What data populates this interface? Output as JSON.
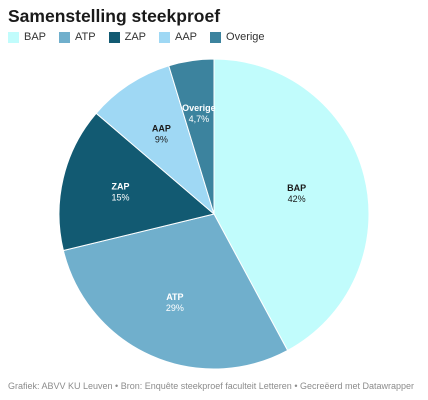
{
  "title": "Samenstelling steekproef",
  "footer": "Grafiek: ABVV KU Leuven • Bron: Enquête steekproef faculteit Letteren • Gecreëerd met Datawrapper",
  "chart_data": {
    "type": "pie",
    "title": "Samenstelling steekproef",
    "legend_position": "top-left",
    "slices": [
      {
        "name": "BAP",
        "value": 42,
        "value_label": "42%",
        "color": "#c1fcfc",
        "label_color": "#1a1a1a"
      },
      {
        "name": "ATP",
        "value": 29,
        "value_label": "29%",
        "color": "#70afcc",
        "label_color": "#ffffff"
      },
      {
        "name": "ZAP",
        "value": 15,
        "value_label": "15%",
        "color": "#125a72",
        "label_color": "#ffffff"
      },
      {
        "name": "AAP",
        "value": 9,
        "value_label": "9%",
        "color": "#9fd8f4",
        "label_color": "#1a1a1a"
      },
      {
        "name": "Overige",
        "value": 4.7,
        "value_label": "4,7%",
        "color": "#3c839e",
        "label_color": "#ffffff"
      }
    ]
  }
}
